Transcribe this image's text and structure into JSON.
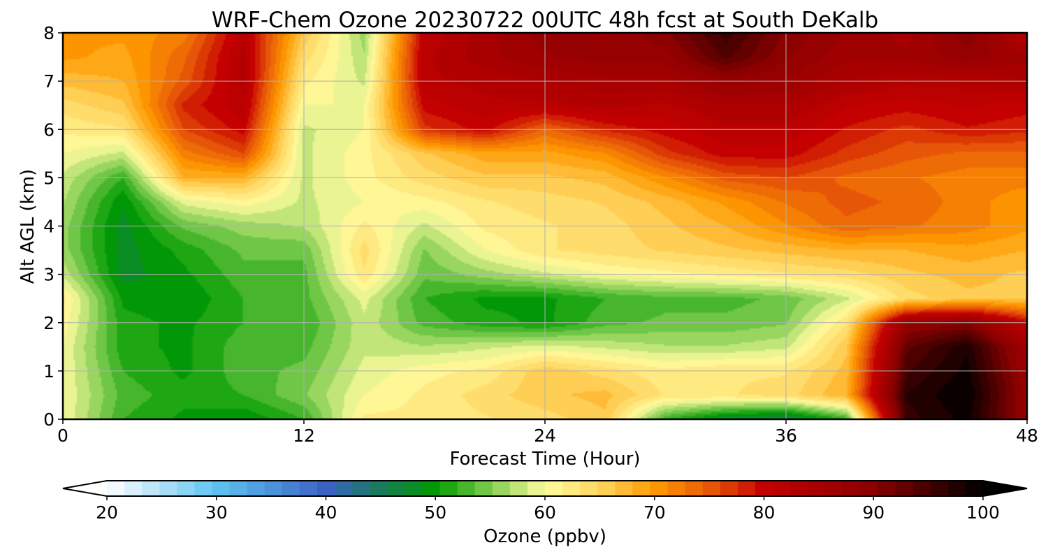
{
  "chart_data": {
    "type": "heatmap",
    "title": "WRF-Chem Ozone  20230722 00UTC 48h fcst at South DeKalb",
    "xlabel": "Forecast Time (Hour)",
    "ylabel": "Alt AGL (km)",
    "xlim": [
      0,
      48
    ],
    "ylim": [
      0,
      8
    ],
    "x_ticks": [
      "0",
      "12",
      "24",
      "36",
      "48"
    ],
    "y_ticks": [
      "0",
      "1",
      "2",
      "3",
      "4",
      "5",
      "6",
      "7",
      "8"
    ],
    "grid": true,
    "colorbar": {
      "label": "Ozone  (ppbv)",
      "range": [
        20,
        100
      ],
      "ticks": [
        "20",
        "30",
        "40",
        "50",
        "60",
        "70",
        "80",
        "90",
        "100"
      ],
      "extend": "both",
      "colors": [
        {
          "v": 20,
          "c": "#ffffff"
        },
        {
          "v": 30,
          "c": "#5fc3f1"
        },
        {
          "v": 40,
          "c": "#3a62c4"
        },
        {
          "v": 45,
          "c": "#1a7a5a"
        },
        {
          "v": 50,
          "c": "#009a00"
        },
        {
          "v": 55,
          "c": "#7fcc50"
        },
        {
          "v": 60,
          "c": "#fffca0"
        },
        {
          "v": 65,
          "c": "#ffd560"
        },
        {
          "v": 70,
          "c": "#ff9a00"
        },
        {
          "v": 75,
          "c": "#e85a08"
        },
        {
          "v": 80,
          "c": "#c40000"
        },
        {
          "v": 90,
          "c": "#8a0000"
        },
        {
          "v": 100,
          "c": "#000000"
        }
      ]
    },
    "x": [
      0,
      3,
      6,
      9,
      12,
      15,
      18,
      21,
      24,
      27,
      30,
      33,
      36,
      39,
      42,
      45,
      48
    ],
    "y": [
      0,
      0.5,
      1,
      1.5,
      2,
      2.5,
      3,
      3.5,
      4,
      4.5,
      5,
      5.5,
      6,
      6.5,
      7,
      7.5,
      8
    ],
    "z": [
      [
        60,
        52,
        50,
        49,
        52,
        62,
        62,
        63,
        64,
        66,
        52,
        47,
        45,
        52,
        96,
        99,
        88
      ],
      [
        60,
        53,
        51,
        52,
        55,
        60,
        62,
        64,
        66,
        67,
        63,
        63,
        64,
        68,
        97,
        100,
        88
      ],
      [
        60,
        52,
        50,
        53,
        54,
        59,
        61,
        62,
        66,
        64,
        62,
        63,
        63,
        67,
        95,
        99,
        87
      ],
      [
        60,
        51,
        50,
        53,
        53,
        58,
        57,
        58,
        59,
        58,
        57,
        57,
        58,
        66,
        93,
        98,
        86
      ],
      [
        61,
        51,
        50,
        52,
        52,
        58,
        53,
        51,
        50,
        53,
        54,
        54,
        55,
        63,
        88,
        90,
        80
      ],
      [
        62,
        50,
        49,
        52,
        53,
        59,
        52,
        50,
        50,
        52,
        53,
        53,
        54,
        58,
        64,
        66,
        66
      ],
      [
        58,
        48,
        50,
        53,
        53,
        63,
        54,
        56,
        58,
        60,
        61,
        62,
        63,
        64,
        66,
        67,
        66
      ],
      [
        56,
        48,
        51,
        54,
        54,
        64,
        55,
        60,
        63,
        64,
        65,
        66,
        67,
        68,
        68,
        69,
        68
      ],
      [
        56,
        48,
        54,
        56,
        57,
        62,
        58,
        62,
        63,
        64,
        66,
        68,
        71,
        74,
        73,
        72,
        70
      ],
      [
        57,
        49,
        59,
        61,
        58,
        60,
        61,
        63,
        64,
        65,
        67,
        70,
        73,
        75,
        74,
        72,
        70
      ],
      [
        58,
        52,
        68,
        68,
        58,
        61,
        64,
        66,
        66,
        67,
        71,
        75,
        76,
        74,
        73,
        72,
        72
      ],
      [
        60,
        58,
        72,
        76,
        58,
        61,
        66,
        69,
        69,
        71,
        77,
        80,
        80,
        77,
        75,
        74,
        74
      ],
      [
        62,
        63,
        76,
        80,
        58,
        60,
        77,
        80,
        74,
        78,
        80,
        82,
        82,
        79,
        77,
        79,
        78
      ],
      [
        64,
        66,
        78,
        82,
        60,
        60,
        80,
        82,
        82,
        83,
        82,
        84,
        84,
        81,
        80,
        81,
        80
      ],
      [
        67,
        68,
        75,
        83,
        62,
        58,
        82,
        83,
        84,
        85,
        85,
        88,
        87,
        84,
        83,
        83,
        84
      ],
      [
        70,
        69,
        74,
        83,
        64,
        57,
        82,
        85,
        87,
        88,
        88,
        94,
        89,
        86,
        86,
        88,
        86
      ],
      [
        70,
        70,
        72,
        82,
        66,
        56,
        81,
        85,
        88,
        87,
        90,
        96,
        90,
        87,
        85,
        90,
        82
      ]
    ]
  }
}
